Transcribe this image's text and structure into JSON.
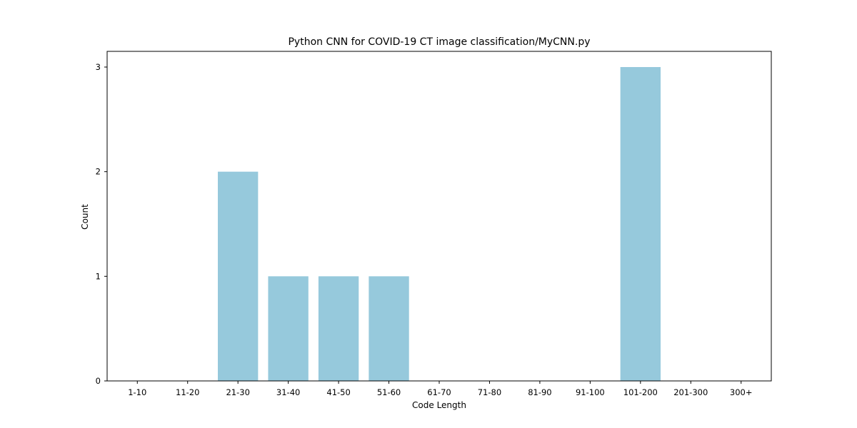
{
  "chart_data": {
    "type": "bar",
    "title": "Python CNN for COVID-19 CT image classification/MyCNN.py",
    "xlabel": "Code Length",
    "ylabel": "Count",
    "categories": [
      "1-10",
      "11-20",
      "21-30",
      "31-40",
      "41-50",
      "51-60",
      "61-70",
      "71-80",
      "81-90",
      "91-100",
      "101-200",
      "201-300",
      "300+"
    ],
    "values": [
      0,
      0,
      2,
      1,
      1,
      1,
      0,
      0,
      0,
      0,
      3,
      0,
      0
    ],
    "yticks": [
      0,
      1,
      2,
      3
    ],
    "ylim": [
      0,
      3.15
    ],
    "grid": false,
    "bar_color": "#96c9dc"
  }
}
